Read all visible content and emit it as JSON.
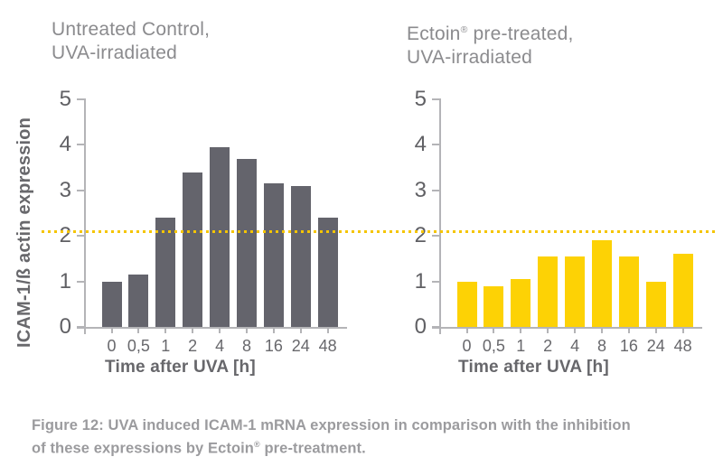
{
  "titles": {
    "left_line1": "Untreated Control,",
    "left_line2": "UVA-irradiated",
    "right_brand": "Ectoin",
    "right_reg": "®",
    "right_rest": " pre-treated,",
    "right_line2": "UVA-irradiated"
  },
  "chart_data": [
    {
      "type": "bar",
      "title": "Untreated Control, UVA-irradiated",
      "categories": [
        "0",
        "0,5",
        "1",
        "2",
        "4",
        "8",
        "16",
        "24",
        "48"
      ],
      "values": [
        1.0,
        1.15,
        2.4,
        3.4,
        3.95,
        3.7,
        3.15,
        3.1,
        2.4
      ],
      "xlabel": "Time after UVA [h]",
      "ylabel": "ICAM-1/ß actin expression",
      "ylim": [
        0,
        5
      ],
      "yticks": [
        0,
        1,
        2,
        3,
        4,
        5
      ],
      "bar_color": "#64646c",
      "reference_line": 2.1,
      "grid": false,
      "legend": "none"
    },
    {
      "type": "bar",
      "title": "Ectoin® pre-treated, UVA-irradiated",
      "categories": [
        "0",
        "0,5",
        "1",
        "2",
        "4",
        "8",
        "16",
        "24",
        "48"
      ],
      "values": [
        1.0,
        0.9,
        1.05,
        1.55,
        1.55,
        1.9,
        1.55,
        1.0,
        1.6
      ],
      "xlabel": "Time after UVA [h]",
      "ylabel": "",
      "ylim": [
        0,
        5
      ],
      "yticks": [
        0,
        1,
        2,
        3,
        4,
        5
      ],
      "bar_color": "#fdd205",
      "reference_line": 2.1,
      "grid": false,
      "legend": "none"
    }
  ],
  "threshold_color": "#f5c500",
  "axis_color": "#b4b4b7",
  "caption": {
    "line1": "Figure 12: UVA induced ICAM-1 mRNA expression in comparison with the inhibition",
    "line2_pre": "of these expressions by Ectoin",
    "line2_reg": "®",
    "line2_post": " pre-treatment."
  }
}
